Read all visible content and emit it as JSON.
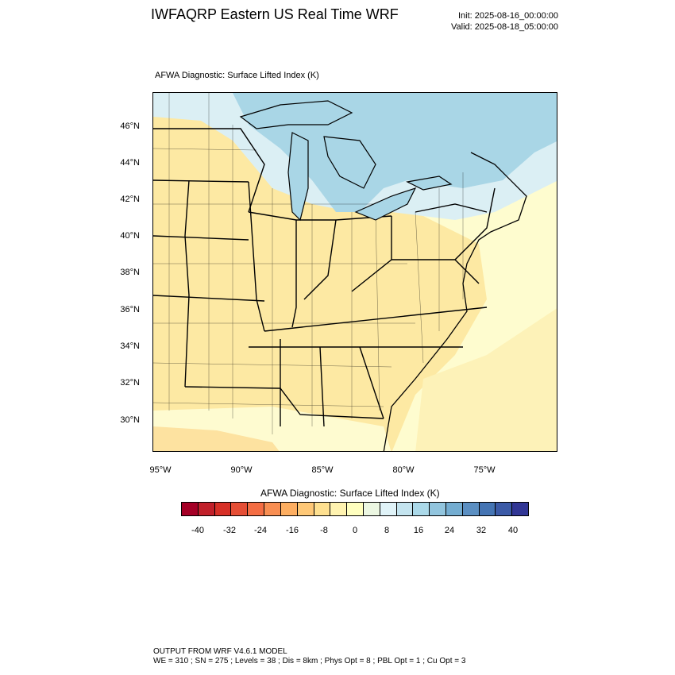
{
  "header": {
    "title": "IWFAQRP Eastern US Real Time WRF",
    "init": "Init: 2025-08-16_00:00:00",
    "valid": "Valid: 2025-08-18_05:00:00"
  },
  "panel": {
    "label": "AFWA Diagnostic: Surface Lifted Index   (K)"
  },
  "map": {
    "lat_labels": [
      "46°N",
      "44°N",
      "42°N",
      "40°N",
      "38°N",
      "36°N",
      "34°N",
      "32°N",
      "30°N"
    ],
    "lon_labels": [
      "95°W",
      "90°W",
      "85°W",
      "80°W",
      "75°W"
    ],
    "colors": {
      "warm_fill": "#fde9a3",
      "near_zero_fill": "#fefccf",
      "cool_fill": "#dbeff4",
      "cold_fill": "#a9d6e6",
      "border": "#000000"
    }
  },
  "colorbar": {
    "title": "AFWA Diagnostic: Surface Lifted Index  (K)",
    "ticks": [
      "-40",
      "-32",
      "-24",
      "-16",
      "-8",
      "0",
      "8",
      "16",
      "24",
      "32",
      "40"
    ],
    "colors": [
      "#a50026",
      "#c1202a",
      "#d73027",
      "#e54e35",
      "#f46d43",
      "#f88e52",
      "#fdae61",
      "#fec877",
      "#fee090",
      "#fff3b0",
      "#ffffbf",
      "#ecf7e2",
      "#e0f3f8",
      "#c4e4ef",
      "#abd9e9",
      "#92c5de",
      "#74add1",
      "#5b8fc2",
      "#4575b4",
      "#3b5aa7",
      "#313695"
    ]
  },
  "footer": {
    "line1": "OUTPUT FROM WRF V4.6.1 MODEL",
    "line2": "WE = 310 ; SN = 275 ; Levels = 38 ; Dis = 8km ; Phys Opt = 8 ; PBL Opt = 1 ; Cu Opt = 3"
  }
}
